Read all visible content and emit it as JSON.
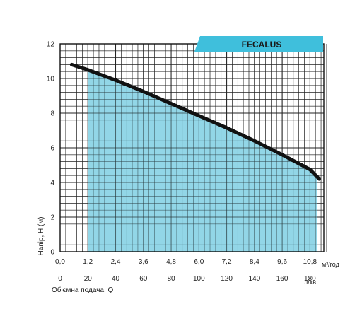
{
  "chart_data": {
    "type": "area",
    "title": "FECALUS",
    "ylabel": "Напір, Н (м)",
    "xlabel": "Об'ємна подача, Q",
    "x_unit_primary": "м³/год",
    "x_unit_secondary": "л/хв",
    "ylim": [
      0,
      12
    ],
    "xlim": [
      0,
      11.4
    ],
    "y_ticks": [
      "0",
      "2",
      "4",
      "6",
      "8",
      "10",
      "12"
    ],
    "x_ticks_primary": [
      "0,0",
      "1,2",
      "2,4",
      "3,6",
      "4,8",
      "6,0",
      "7,2",
      "8,4",
      "9,6",
      "10,8"
    ],
    "x_ticks_primary_values": [
      0,
      1.2,
      2.4,
      3.6,
      4.8,
      6.0,
      7.2,
      8.4,
      9.6,
      10.8
    ],
    "x_ticks_secondary": [
      "0",
      "20",
      "40",
      "60",
      "80",
      "100",
      "120",
      "140",
      "160",
      "180"
    ],
    "grid": true,
    "series": [
      {
        "x": [
          0.5,
          1.2,
          2.4,
          3.6,
          4.8,
          6.0,
          7.2,
          8.4,
          9.6,
          10.8,
          11.2
        ],
        "y": [
          10.8,
          10.5,
          9.9,
          9.25,
          8.55,
          7.85,
          7.15,
          6.4,
          5.6,
          4.75,
          4.2
        ]
      }
    ],
    "shaded_region": {
      "x_from": 1.2,
      "x_to": 11.1
    },
    "colors": {
      "curve": "#111111",
      "fill": "#7fcfe3",
      "grid": "#222222",
      "banner": "#3fbfdc"
    }
  }
}
